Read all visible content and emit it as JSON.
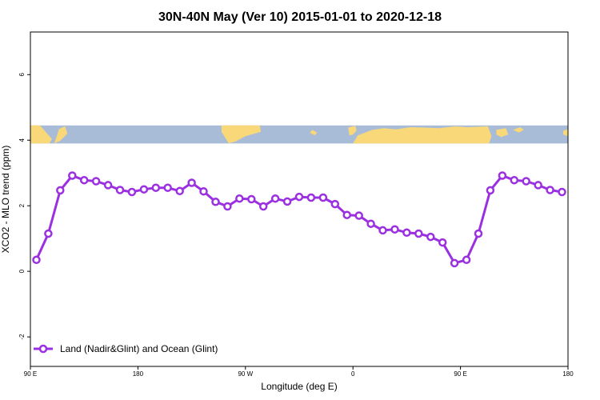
{
  "chart_data": {
    "type": "line",
    "title": "30N-40N May (Ver 10)   2015-01-01 to 2020-12-18",
    "xlabel": "Longitude (deg E)",
    "ylabel": "XCO2 - MLO trend (ppm)",
    "x_ticks": [
      {
        "value": 90,
        "label": "90 E"
      },
      {
        "value": 180,
        "label": "180"
      },
      {
        "value": 270,
        "label": "90 W"
      },
      {
        "value": 360,
        "label": "0"
      },
      {
        "value": 450,
        "label": "90 E"
      },
      {
        "value": 540,
        "label": "180"
      }
    ],
    "y_ticks": [
      {
        "value": -2,
        "label": "-2"
      },
      {
        "value": 0,
        "label": "0"
      },
      {
        "value": 2,
        "label": "2"
      },
      {
        "value": 4,
        "label": "4"
      },
      {
        "value": 6,
        "label": "6"
      }
    ],
    "xlim": [
      90,
      540
    ],
    "ylim": [
      -2.9,
      7.3
    ],
    "map_band": {
      "ymin": 3.9,
      "ymax": 4.45,
      "ocean_color": "#a8bcd8",
      "land_color": "#f8d878"
    },
    "series": [
      {
        "name": "Land (Nadir&Glint) and Ocean (Glint)",
        "color": "#9b30e0",
        "x": [
          95,
          105,
          115,
          125,
          135,
          145,
          155,
          165,
          175,
          185,
          195,
          205,
          215,
          225,
          235,
          245,
          255,
          265,
          275,
          285,
          295,
          305,
          315,
          325,
          335,
          345,
          355,
          365,
          375,
          385,
          395,
          405,
          415,
          425,
          435,
          445,
          455,
          465,
          475,
          485,
          495,
          505,
          515,
          525,
          535
        ],
        "y": [
          0.35,
          1.15,
          2.47,
          2.92,
          2.78,
          2.75,
          2.63,
          2.48,
          2.42,
          2.5,
          2.55,
          2.55,
          2.45,
          2.7,
          2.44,
          2.12,
          1.98,
          2.22,
          2.2,
          1.98,
          2.22,
          2.13,
          2.27,
          2.25,
          2.25,
          2.05,
          1.72,
          1.7,
          1.45,
          1.25,
          1.28,
          1.18,
          1.15,
          1.05,
          0.88,
          0.25,
          0.35,
          1.15,
          2.47,
          2.92,
          2.78,
          2.75,
          2.63,
          2.48,
          2.42
        ]
      }
    ],
    "legend": {
      "placement": "bottom-left"
    }
  }
}
